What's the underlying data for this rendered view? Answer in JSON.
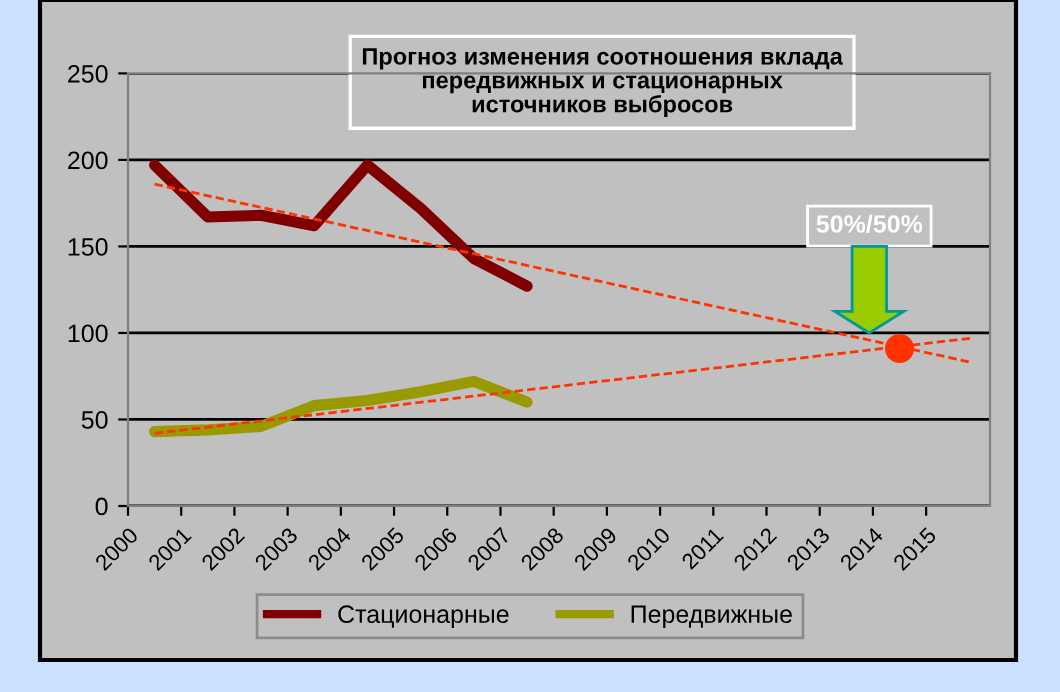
{
  "chart_data": {
    "type": "line",
    "title": "Прогноз изменения соотношения вклада\nпередвижных и стационарных\nисточников выбросов",
    "xlim": [
      2000,
      2016.2
    ],
    "xticks": [
      2000,
      2001,
      2002,
      2003,
      2004,
      2005,
      2006,
      2007,
      2008,
      2009,
      2010,
      2011,
      2012,
      2013,
      2014,
      2015
    ],
    "ylim": [
      0,
      250
    ],
    "yticks": [
      0,
      50,
      100,
      150,
      200,
      250
    ],
    "grid": "y",
    "legend": "bottom",
    "series": [
      {
        "name": "Стационарные",
        "color": "#800000",
        "x": [
          2000.5,
          2001.5,
          2002.5,
          2003.5,
          2004.5,
          2005.5,
          2006.5,
          2007.5
        ],
        "values": [
          197,
          167,
          168,
          162,
          197,
          172,
          143,
          127
        ]
      },
      {
        "name": "Передвижные",
        "color": "#999900",
        "x": [
          2000.5,
          2001.5,
          2002.5,
          2003.5,
          2004.5,
          2005.5,
          2006.5,
          2007.5
        ],
        "values": [
          43,
          44,
          46,
          58,
          61,
          66,
          72,
          60
        ]
      },
      {
        "color": "#ff3300",
        "line_style": "dashed",
        "x": [
          2000.5,
          2015.85
        ],
        "values": [
          186,
          83
        ]
      },
      {
        "color": "#ff3300",
        "line_style": "dashed",
        "x": [
          2000.5,
          2015.85
        ],
        "values": [
          42,
          97
        ]
      },
      {
        "type": "scatter",
        "color": "#ff3300",
        "x": [
          2014.5
        ],
        "values": [
          91
        ]
      }
    ],
    "annotations": [
      "50%/50%"
    ]
  }
}
